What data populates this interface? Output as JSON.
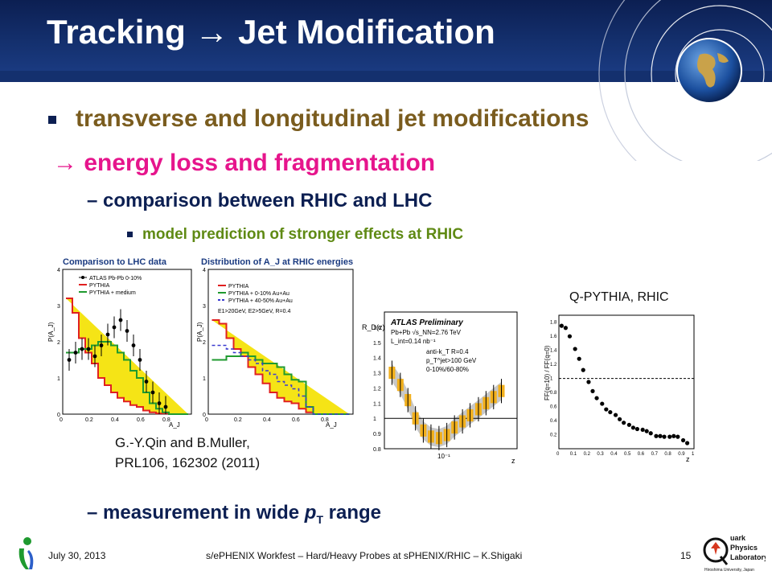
{
  "slide": {
    "title": "Tracking → Jet Modification",
    "bullets": {
      "b1": "transverse and longitudinal jet modifications",
      "b2": "→ energy loss and fragmentation",
      "b3": "– comparison between RHIC and LHC",
      "b4": "model prediction of stronger effects at RHIC",
      "b5_prefix": "– measurement in wide ",
      "b5_p": "p",
      "b5_sub": "T",
      "b5_suffix": " range"
    },
    "citation_line1": "G.-Y.Qin and B.Muller,",
    "citation_line2": "PRL106, 162302 (2011)",
    "q_label": "Q-PYTHIA, RHIC"
  },
  "footer": {
    "date": "July 30, 2013",
    "center": "s/ePHENIX Workfest – Hard/Heavy Probes at sPHENIX/RHIC – K.Shigaki",
    "page": "15"
  },
  "fig1": {
    "title": "Comparison to LHC data",
    "ylabel": "P(A_J)",
    "xlabel": "A_J",
    "legend": [
      "ATLAS Pb-Pb 0-10%",
      "PYTHIA",
      "PYTHIA + medium"
    ],
    "xticks": [
      "0",
      "0.2",
      "0.4",
      "0.6",
      "0.8"
    ],
    "yticks": [
      "0",
      "1",
      "2",
      "3",
      "4"
    ]
  },
  "fig2": {
    "title": "Distribution of A_J at RHIC energies",
    "ylabel": "P(A_J)",
    "xlabel": "A_J",
    "legend": [
      "PYTHIA",
      "PYTHIA + 0-10% Au+Au",
      "PYTHIA + 40-50% Au+Au"
    ],
    "cuts": "E1>20GeV, E2>5GeV, R=0.4",
    "xticks": [
      "0",
      "0.2",
      "0.4",
      "0.6",
      "0.8"
    ],
    "yticks": [
      "0",
      "1",
      "2",
      "3",
      "4"
    ]
  },
  "fig3": {
    "heading": "ATLAS Preliminary",
    "lines": [
      "Pb+Pb √s_NN=2.76 TeV",
      "L_int=0.14 nb⁻¹",
      "anti-k_T R=0.4",
      "p_T^jet>100 GeV",
      "0-10%/60-80%"
    ],
    "ylabel": "R_D(z)",
    "xlabel": "z",
    "xtick": "10⁻¹",
    "yticks": [
      "0.8",
      "0.9",
      "1",
      "1.1",
      "1.2",
      "1.3",
      "1.4",
      "1.5",
      "1.6"
    ]
  },
  "fig4": {
    "ylabel": "FF(q=10) / FF(q=0)",
    "xlabel": "z",
    "xticks": [
      "0",
      "0.1",
      "0.2",
      "0.3",
      "0.4",
      "0.5",
      "0.6",
      "0.7",
      "0.8",
      "0.9",
      "1"
    ],
    "yticks": [
      "0.2",
      "0.4",
      "0.6",
      "0.8",
      "1",
      "1.2",
      "1.4",
      "1.6",
      "1.8"
    ]
  },
  "chart_data": [
    {
      "type": "line",
      "title": "Comparison to LHC data",
      "xlabel": "A_J",
      "ylabel": "P(A_J)",
      "xlim": [
        0,
        1
      ],
      "ylim": [
        0,
        4
      ],
      "x": [
        0.05,
        0.1,
        0.15,
        0.2,
        0.25,
        0.3,
        0.35,
        0.4,
        0.45,
        0.5,
        0.55,
        0.6,
        0.65,
        0.7,
        0.75,
        0.8,
        0.85,
        0.9,
        0.95
      ],
      "series": [
        {
          "name": "PYTHIA",
          "values": [
            3.2,
            2.8,
            2.1,
            1.7,
            1.4,
            1.0,
            0.8,
            0.6,
            0.45,
            0.35,
            0.25,
            0.2,
            0.1,
            0.05,
            0.02,
            0.02,
            0,
            0,
            0
          ]
        },
        {
          "name": "PYTHIA + medium",
          "values": [
            1.7,
            1.7,
            1.8,
            1.8,
            1.9,
            2.0,
            2.0,
            1.9,
            1.7,
            1.5,
            1.2,
            1.0,
            0.6,
            0.3,
            0.15,
            0.05,
            0,
            0,
            0
          ]
        },
        {
          "name": "ATLAS Pb-Pb 0-10%",
          "values": [
            1.5,
            1.7,
            1.8,
            1.8,
            1.6,
            1.9,
            2.2,
            2.4,
            2.6,
            2.3,
            1.9,
            1.5,
            0.9,
            0.6,
            0.3,
            0.2,
            null,
            null,
            null
          ]
        }
      ]
    },
    {
      "type": "line",
      "title": "Distribution of A_J at RHIC energies",
      "xlabel": "A_J",
      "ylabel": "P(A_J)",
      "xlim": [
        0,
        1
      ],
      "ylim": [
        0,
        4
      ],
      "x": [
        0.05,
        0.1,
        0.15,
        0.2,
        0.25,
        0.3,
        0.35,
        0.4,
        0.45,
        0.5,
        0.55,
        0.6,
        0.65,
        0.7,
        0.75,
        0.8,
        0.85,
        0.9,
        0.95
      ],
      "series": [
        {
          "name": "PYTHIA",
          "values": [
            2.6,
            2.5,
            2.1,
            1.8,
            1.6,
            1.3,
            1.1,
            0.85,
            0.6,
            0.45,
            0.35,
            0.3,
            0.15,
            0.05,
            0,
            0,
            0,
            0,
            0
          ]
        },
        {
          "name": "PYTHIA + 0-10% Au+Au",
          "values": [
            1.5,
            1.5,
            1.6,
            1.6,
            1.7,
            1.6,
            1.5,
            1.4,
            1.4,
            1.3,
            1.1,
            0.95,
            0.9,
            0.2,
            0,
            0,
            0,
            0,
            0
          ]
        },
        {
          "name": "PYTHIA + 40-50% Au+Au",
          "values": [
            1.9,
            1.9,
            1.8,
            1.7,
            1.6,
            1.5,
            1.4,
            1.2,
            1.1,
            0.9,
            0.8,
            0.7,
            0.5,
            0.2,
            0,
            0,
            0,
            0,
            0
          ]
        }
      ]
    },
    {
      "type": "scatter",
      "title": "ATLAS Preliminary",
      "xlabel": "z",
      "ylabel": "R_D(z)",
      "xscale": "log",
      "xlim": [
        0.02,
        1.0
      ],
      "ylim": [
        0.8,
        1.7
      ],
      "x": [
        0.025,
        0.032,
        0.04,
        0.05,
        0.063,
        0.079,
        0.1,
        0.126,
        0.158,
        0.2,
        0.25,
        0.32,
        0.4,
        0.5,
        0.63
      ],
      "series": [
        {
          "name": "",
          "values": [
            1.3,
            1.22,
            1.12,
            1.0,
            0.92,
            0.88,
            0.87,
            0.89,
            0.94,
            0.98,
            1.02,
            1.06,
            1.1,
            1.14,
            1.18
          ]
        }
      ]
    },
    {
      "type": "scatter",
      "xlabel": "z",
      "ylabel": "FF(q=10) / FF(q=0)",
      "xlim": [
        0,
        1
      ],
      "ylim": [
        0,
        1.9
      ],
      "x": [
        0.02,
        0.05,
        0.08,
        0.12,
        0.15,
        0.18,
        0.22,
        0.25,
        0.28,
        0.32,
        0.35,
        0.38,
        0.42,
        0.45,
        0.48,
        0.52,
        0.55,
        0.58,
        0.62,
        0.65,
        0.68,
        0.72,
        0.75,
        0.78,
        0.82,
        0.85,
        0.88,
        0.92,
        0.95
      ],
      "series": [
        {
          "name": "",
          "values": [
            1.75,
            1.72,
            1.6,
            1.42,
            1.28,
            1.12,
            0.95,
            0.82,
            0.72,
            0.64,
            0.56,
            0.52,
            0.48,
            0.42,
            0.37,
            0.34,
            0.3,
            0.28,
            0.27,
            0.25,
            0.22,
            0.18,
            0.18,
            0.17,
            0.17,
            0.18,
            0.17,
            0.12,
            0.08
          ]
        }
      ]
    }
  ]
}
